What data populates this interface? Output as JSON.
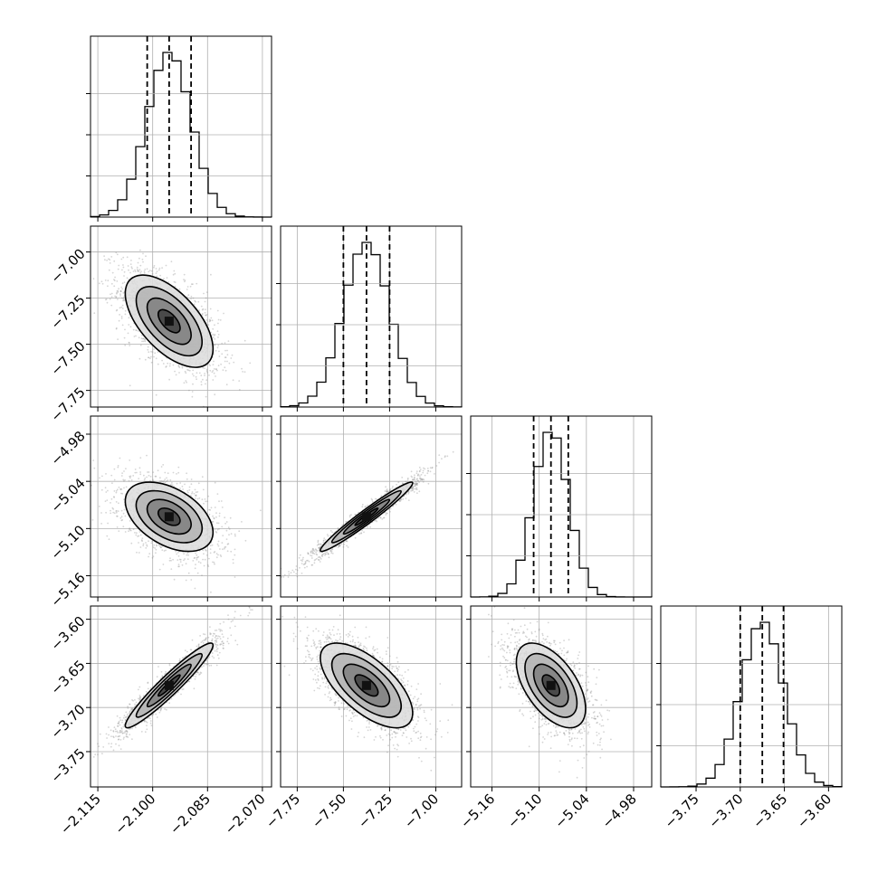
{
  "chart_data": {
    "type": "corner",
    "parameters": [
      {
        "ticks": [
          -2.115,
          -2.1,
          -2.085,
          -2.07
        ],
        "tick_labels": [
          "−2.115",
          "−2.100",
          "−2.085",
          "−2.070"
        ],
        "range": [
          -2.117,
          -2.0675
        ],
        "mean": -2.0955,
        "sd": 0.006,
        "quantiles": [
          -2.1015,
          -2.0955,
          -2.0895
        ]
      },
      {
        "ticks": [
          -7.75,
          -7.5,
          -7.25,
          -7.0
        ],
        "tick_labels": [
          "−7.75",
          "−7.50",
          "−7.25",
          "−7.00"
        ],
        "range": [
          -7.84,
          -6.86
        ],
        "mean": -7.375,
        "sd": 0.125,
        "quantiles": [
          -7.5,
          -7.375,
          -7.25
        ]
      },
      {
        "ticks": [
          -5.16,
          -5.1,
          -5.04,
          -4.98
        ],
        "tick_labels": [
          "−5.16",
          "−5.10",
          "−5.04",
          "−4.98"
        ],
        "range": [
          -5.187,
          -4.957
        ],
        "mean": -5.085,
        "sd": 0.022,
        "quantiles": [
          -5.107,
          -5.085,
          -5.063
        ]
      },
      {
        "ticks": [
          -3.75,
          -3.7,
          -3.65,
          -3.6
        ],
        "tick_labels": [
          "−3.75",
          "−3.70",
          "−3.65",
          "−3.60"
        ],
        "range": [
          -3.79,
          -3.585
        ],
        "mean": -3.675,
        "sd": 0.024,
        "quantiles": [
          -3.7,
          -3.675,
          -3.651
        ]
      }
    ],
    "correlations": [
      [
        1,
        -0.6,
        -0.45,
        0.95
      ],
      [
        -0.6,
        1,
        0.97,
        -0.65
      ],
      [
        -0.45,
        0.97,
        1,
        -0.55
      ],
      [
        0.95,
        -0.65,
        -0.55,
        1
      ]
    ],
    "contour_levels_sigma": [
      0.5,
      1.0,
      1.5,
      2.0
    ],
    "colors": {
      "line": "#000000",
      "grid": "#b0b0b0",
      "points": "#888888"
    }
  }
}
